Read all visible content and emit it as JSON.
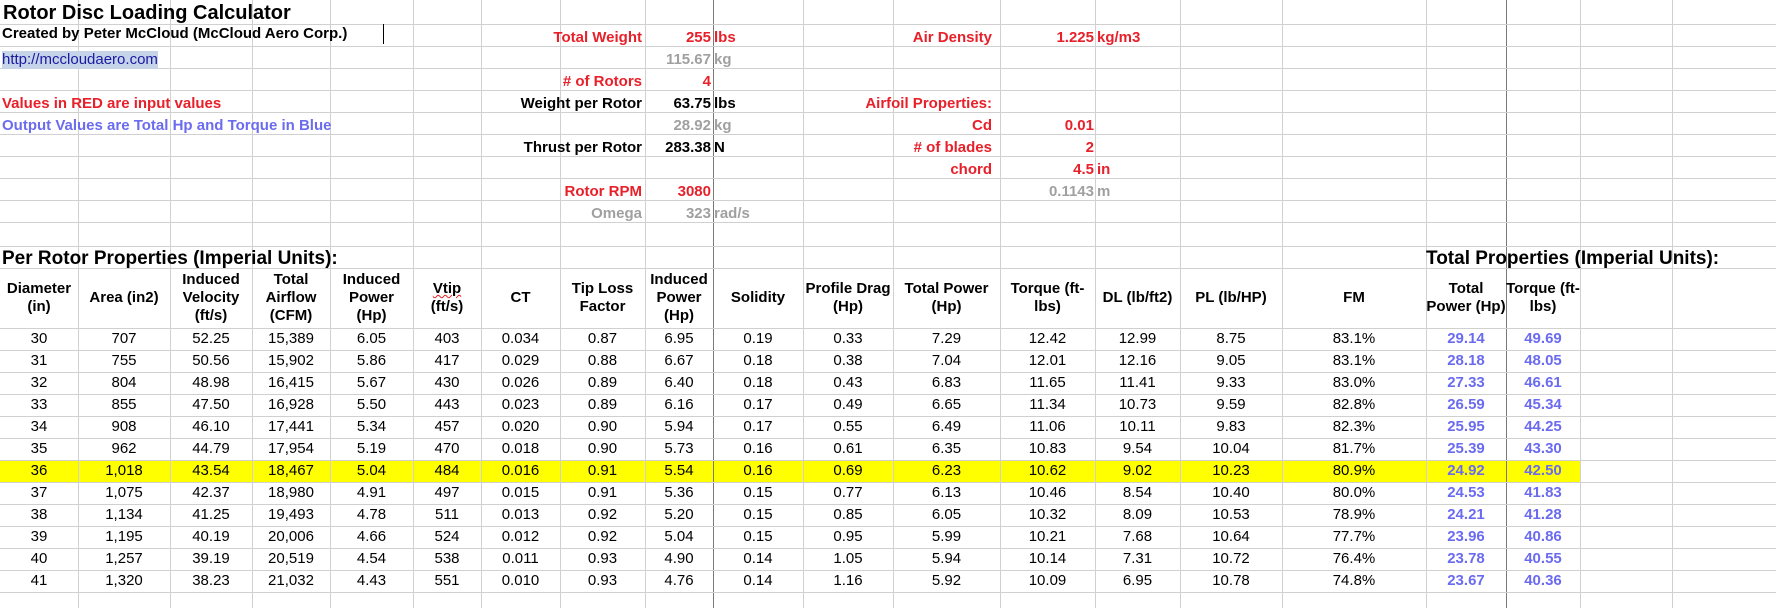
{
  "title": "Rotor Disc Loading Calculator",
  "created_by": "Created by Peter McCloud (McCloud Aero Corp.)",
  "url": "http://mccloudaero.com",
  "note_inputs": "Values in RED are input values",
  "note_outputs": "Output Values are Total Hp and Torque in Blue",
  "inputs": {
    "total_weight_label": "Total Weight",
    "total_weight": "255",
    "total_weight_unit": "lbs",
    "total_weight_kg": "115.67",
    "kg_unit": "kg",
    "rotors_label": "# of Rotors",
    "rotors": "4",
    "weight_per_rotor_label": "Weight per Rotor",
    "weight_per_rotor": "63.75",
    "weight_per_rotor_unit": "lbs",
    "weight_per_rotor_kg": "28.92",
    "kg_unit2": "kg",
    "thrust_label": "Thrust per Rotor",
    "thrust": "283.38",
    "thrust_unit": "N",
    "rpm_label": "Rotor RPM",
    "rpm": "3080",
    "omega_label": "Omega",
    "omega": "323",
    "omega_unit": "rad/s",
    "air_density_label": "Air Density",
    "air_density": "1.225",
    "air_density_unit": "kg/m3",
    "airfoil_label": "Airfoil Properties:",
    "cd_label": "Cd",
    "cd": "0.01",
    "blades_label": "# of blades",
    "blades": "2",
    "chord_label": "chord",
    "chord": "4.5",
    "chord_unit": "in",
    "chord_m": "0.1143",
    "chord_m_unit": "m"
  },
  "per_rotor_title": "Per Rotor Properties (Imperial Units):",
  "total_title": "Total Properties (Imperial Units):",
  "columns": [
    "Diameter (in)",
    "Area (in2)",
    "Induced Velocity (ft/s)",
    "Total Airflow (CFM)",
    "Induced Power (Hp)",
    "Vtip (ft/s)",
    "CT",
    "Tip Loss Factor",
    "Induced Power (Hp)",
    "Solidity",
    "Profile Drag (Hp)",
    "Total Power (Hp)",
    "Torque (ft-lbs)",
    "DL (lb/ft2)",
    "PL (lb/HP)",
    "FM"
  ],
  "total_columns": [
    "Total Power (Hp)",
    "Torque (ft-lbs)"
  ],
  "highlight_row": 6,
  "rows": [
    [
      "30",
      "707",
      "52.25",
      "15,389",
      "6.05",
      "403",
      "0.034",
      "0.87",
      "6.95",
      "0.19",
      "0.33",
      "7.29",
      "12.42",
      "12.99",
      "8.75",
      "83.1%",
      "29.14",
      "49.69"
    ],
    [
      "31",
      "755",
      "50.56",
      "15,902",
      "5.86",
      "417",
      "0.029",
      "0.88",
      "6.67",
      "0.18",
      "0.38",
      "7.04",
      "12.01",
      "12.16",
      "9.05",
      "83.1%",
      "28.18",
      "48.05"
    ],
    [
      "32",
      "804",
      "48.98",
      "16,415",
      "5.67",
      "430",
      "0.026",
      "0.89",
      "6.40",
      "0.18",
      "0.43",
      "6.83",
      "11.65",
      "11.41",
      "9.33",
      "83.0%",
      "27.33",
      "46.61"
    ],
    [
      "33",
      "855",
      "47.50",
      "16,928",
      "5.50",
      "443",
      "0.023",
      "0.89",
      "6.16",
      "0.17",
      "0.49",
      "6.65",
      "11.34",
      "10.73",
      "9.59",
      "82.8%",
      "26.59",
      "45.34"
    ],
    [
      "34",
      "908",
      "46.10",
      "17,441",
      "5.34",
      "457",
      "0.020",
      "0.90",
      "5.94",
      "0.17",
      "0.55",
      "6.49",
      "11.06",
      "10.11",
      "9.83",
      "82.3%",
      "25.95",
      "44.25"
    ],
    [
      "35",
      "962",
      "44.79",
      "17,954",
      "5.19",
      "470",
      "0.018",
      "0.90",
      "5.73",
      "0.16",
      "0.61",
      "6.35",
      "10.83",
      "9.54",
      "10.04",
      "81.7%",
      "25.39",
      "43.30"
    ],
    [
      "36",
      "1,018",
      "43.54",
      "18,467",
      "5.04",
      "484",
      "0.016",
      "0.91",
      "5.54",
      "0.16",
      "0.69",
      "6.23",
      "10.62",
      "9.02",
      "10.23",
      "80.9%",
      "24.92",
      "42.50"
    ],
    [
      "37",
      "1,075",
      "42.37",
      "18,980",
      "4.91",
      "497",
      "0.015",
      "0.91",
      "5.36",
      "0.15",
      "0.77",
      "6.13",
      "10.46",
      "8.54",
      "10.40",
      "80.0%",
      "24.53",
      "41.83"
    ],
    [
      "38",
      "1,134",
      "41.25",
      "19,493",
      "4.78",
      "511",
      "0.013",
      "0.92",
      "5.20",
      "0.15",
      "0.85",
      "6.05",
      "10.32",
      "8.09",
      "10.53",
      "78.9%",
      "24.21",
      "41.28"
    ],
    [
      "39",
      "1,195",
      "40.19",
      "20,006",
      "4.66",
      "524",
      "0.012",
      "0.92",
      "5.04",
      "0.15",
      "0.95",
      "5.99",
      "10.21",
      "7.68",
      "10.64",
      "77.7%",
      "23.96",
      "40.86"
    ],
    [
      "40",
      "1,257",
      "39.19",
      "20,519",
      "4.54",
      "538",
      "0.011",
      "0.93",
      "4.90",
      "0.14",
      "1.05",
      "5.94",
      "10.14",
      "7.31",
      "10.72",
      "76.4%",
      "23.78",
      "40.55"
    ],
    [
      "41",
      "1,320",
      "38.23",
      "21,032",
      "4.43",
      "551",
      "0.010",
      "0.93",
      "4.76",
      "0.14",
      "1.16",
      "5.92",
      "10.09",
      "6.95",
      "10.78",
      "74.8%",
      "23.67",
      "40.36"
    ]
  ]
}
